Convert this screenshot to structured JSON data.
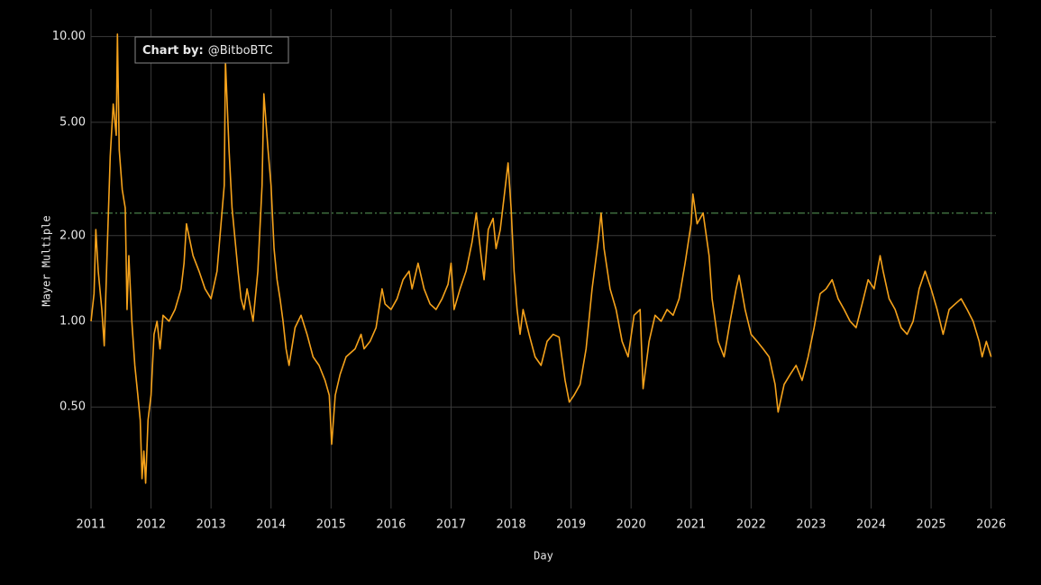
{
  "chart_data": {
    "type": "line",
    "x_label": "Day",
    "y_label": "Mayer Multiple",
    "annotation": {
      "label": "Chart by:",
      "text": "@BitboBTC"
    },
    "log_y": true,
    "grid": true,
    "color": "#f5a21b",
    "reference_line": {
      "value": 2.4,
      "color": "#3d6b3d"
    },
    "xlim": [
      2011,
      2026.08
    ],
    "xticks": [
      2011,
      2012,
      2013,
      2014,
      2015,
      2016,
      2017,
      2018,
      2019,
      2020,
      2021,
      2022,
      2023,
      2024,
      2025,
      2026
    ],
    "ylim": [
      0.22,
      12.5
    ],
    "yticks": [
      {
        "value": 0.5,
        "label": "0.50"
      },
      {
        "value": 1,
        "label": "1.00"
      },
      {
        "value": 2,
        "label": "2.00"
      },
      {
        "value": 5,
        "label": "5.00"
      },
      {
        "value": 10,
        "label": "10.00"
      }
    ],
    "x": [
      2011.0,
      2011.05,
      2011.08,
      2011.12,
      2011.18,
      2011.22,
      2011.27,
      2011.32,
      2011.37,
      2011.42,
      2011.44,
      2011.47,
      2011.52,
      2011.57,
      2011.6,
      2011.63,
      2011.68,
      2011.73,
      2011.78,
      2011.82,
      2011.85,
      2011.88,
      2011.91,
      2011.95,
      2012.0,
      2012.05,
      2012.1,
      2012.15,
      2012.2,
      2012.3,
      2012.4,
      2012.5,
      2012.55,
      2012.59,
      2012.7,
      2012.8,
      2012.9,
      2013.0,
      2013.1,
      2013.15,
      2013.22,
      2013.24,
      2013.3,
      2013.35,
      2013.45,
      2013.5,
      2013.55,
      2013.6,
      2013.7,
      2013.78,
      2013.85,
      2013.88,
      2013.95,
      2014.0,
      2014.05,
      2014.1,
      2014.15,
      2014.2,
      2014.25,
      2014.3,
      2014.4,
      2014.5,
      2014.6,
      2014.7,
      2014.8,
      2014.9,
      2014.97,
      2015.01,
      2015.07,
      2015.15,
      2015.25,
      2015.4,
      2015.5,
      2015.55,
      2015.65,
      2015.75,
      2015.85,
      2015.9,
      2016.0,
      2016.1,
      2016.2,
      2016.3,
      2016.35,
      2016.45,
      2016.55,
      2016.65,
      2016.75,
      2016.85,
      2016.95,
      2017.0,
      2017.05,
      2017.15,
      2017.25,
      2017.35,
      2017.42,
      2017.5,
      2017.55,
      2017.62,
      2017.7,
      2017.75,
      2017.82,
      2017.95,
      2018.0,
      2018.05,
      2018.1,
      2018.15,
      2018.2,
      2018.3,
      2018.4,
      2018.5,
      2018.6,
      2018.7,
      2018.8,
      2018.9,
      2018.97,
      2019.05,
      2019.15,
      2019.25,
      2019.35,
      2019.45,
      2019.5,
      2019.55,
      2019.65,
      2019.75,
      2019.85,
      2019.95,
      2020.05,
      2020.15,
      2020.2,
      2020.3,
      2020.4,
      2020.5,
      2020.6,
      2020.7,
      2020.8,
      2020.9,
      2021.0,
      2021.03,
      2021.1,
      2021.2,
      2021.3,
      2021.35,
      2021.45,
      2021.55,
      2021.65,
      2021.75,
      2021.8,
      2021.9,
      2022.0,
      2022.1,
      2022.2,
      2022.3,
      2022.4,
      2022.45,
      2022.55,
      2022.65,
      2022.75,
      2022.85,
      2022.95,
      2023.05,
      2023.15,
      2023.25,
      2023.35,
      2023.45,
      2023.55,
      2023.65,
      2023.75,
      2023.85,
      2023.95,
      2024.05,
      2024.15,
      2024.2,
      2024.3,
      2024.4,
      2024.5,
      2024.6,
      2024.7,
      2024.8,
      2024.9,
      2025.0,
      2025.1,
      2025.2,
      2025.3,
      2025.4,
      2025.5,
      2025.6,
      2025.7,
      2025.8,
      2025.85,
      2025.92,
      2026.0
    ],
    "values": [
      1.0,
      1.25,
      2.1,
      1.5,
      1.1,
      0.82,
      1.8,
      3.8,
      5.8,
      4.5,
      10.2,
      4.0,
      2.9,
      2.5,
      1.1,
      1.7,
      1.0,
      0.7,
      0.55,
      0.45,
      0.28,
      0.35,
      0.27,
      0.45,
      0.55,
      0.9,
      1.0,
      0.8,
      1.05,
      1.0,
      1.1,
      1.3,
      1.6,
      2.2,
      1.7,
      1.5,
      1.3,
      1.2,
      1.5,
      2.0,
      3.0,
      8.2,
      4.0,
      2.5,
      1.5,
      1.2,
      1.1,
      1.3,
      1.0,
      1.5,
      3.0,
      6.3,
      4.0,
      3.0,
      1.8,
      1.4,
      1.2,
      1.0,
      0.8,
      0.7,
      0.95,
      1.05,
      0.9,
      0.75,
      0.7,
      0.62,
      0.55,
      0.37,
      0.55,
      0.65,
      0.75,
      0.8,
      0.9,
      0.8,
      0.85,
      0.95,
      1.3,
      1.15,
      1.1,
      1.2,
      1.4,
      1.5,
      1.3,
      1.6,
      1.3,
      1.15,
      1.1,
      1.2,
      1.35,
      1.6,
      1.1,
      1.3,
      1.5,
      1.9,
      2.4,
      1.7,
      1.4,
      2.1,
      2.3,
      1.8,
      2.1,
      3.6,
      2.5,
      1.5,
      1.1,
      0.9,
      1.1,
      0.9,
      0.75,
      0.7,
      0.85,
      0.9,
      0.88,
      0.62,
      0.52,
      0.55,
      0.6,
      0.8,
      1.3,
      1.9,
      2.4,
      1.8,
      1.3,
      1.1,
      0.85,
      0.75,
      1.05,
      1.1,
      0.58,
      0.85,
      1.05,
      1.0,
      1.1,
      1.05,
      1.2,
      1.6,
      2.2,
      2.8,
      2.2,
      2.4,
      1.7,
      1.2,
      0.85,
      0.75,
      1.0,
      1.3,
      1.45,
      1.1,
      0.9,
      0.85,
      0.8,
      0.75,
      0.6,
      0.48,
      0.6,
      0.65,
      0.7,
      0.62,
      0.75,
      0.95,
      1.25,
      1.3,
      1.4,
      1.2,
      1.1,
      1.0,
      0.95,
      1.15,
      1.4,
      1.3,
      1.7,
      1.5,
      1.2,
      1.1,
      0.95,
      0.9,
      1.0,
      1.3,
      1.5,
      1.3,
      1.1,
      0.9,
      1.1,
      1.15,
      1.2,
      1.1,
      1.0,
      0.85,
      0.75,
      0.85,
      0.75
    ]
  }
}
